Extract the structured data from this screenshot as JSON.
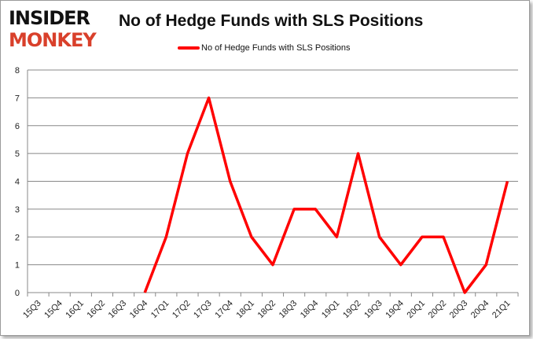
{
  "logo": {
    "line1": "INSIDER",
    "line2": "MONKEY"
  },
  "chart_data": {
    "type": "line",
    "title": "No of Hedge Funds with SLS Positions",
    "xlabel": "",
    "ylabel": "",
    "categories": [
      "15Q3",
      "15Q4",
      "16Q1",
      "16Q2",
      "16Q3",
      "16Q4",
      "17Q1",
      "17Q2",
      "17Q3",
      "17Q4",
      "18Q1",
      "18Q2",
      "18Q3",
      "18Q4",
      "19Q1",
      "19Q2",
      "19Q3",
      "19Q4",
      "20Q1",
      "20Q2",
      "20Q3",
      "20Q4",
      "21Q1"
    ],
    "series": [
      {
        "name": "No of Hedge Funds with SLS Positions",
        "color": "#ff0000",
        "values": [
          null,
          null,
          null,
          null,
          null,
          0,
          2,
          5,
          7,
          4,
          2,
          1,
          3,
          3,
          2,
          5,
          2,
          1,
          2,
          2,
          0,
          1,
          4
        ]
      }
    ],
    "ylim": [
      0,
      8
    ],
    "yticks": [
      0,
      1,
      2,
      3,
      4,
      5,
      6,
      7,
      8
    ],
    "grid": true,
    "legend": "top-center"
  }
}
